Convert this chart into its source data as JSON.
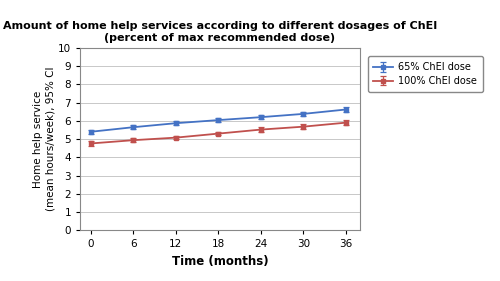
{
  "title_line1": "Amount of home help services according to different dosages of ChEI",
  "title_line2": "(percent of max recommended dose)",
  "xlabel": "Time (months)",
  "ylabel": "Home help service\n(mean hours/week), 95% CI",
  "x": [
    0,
    6,
    12,
    18,
    24,
    30,
    36
  ],
  "blue_y": [
    5.4,
    5.65,
    5.87,
    6.04,
    6.2,
    6.38,
    6.62
  ],
  "red_y": [
    4.76,
    4.94,
    5.08,
    5.3,
    5.52,
    5.68,
    5.9
  ],
  "blue_yerr": [
    0.12,
    0.1,
    0.1,
    0.1,
    0.12,
    0.12,
    0.14
  ],
  "red_yerr": [
    0.12,
    0.1,
    0.1,
    0.1,
    0.12,
    0.12,
    0.14
  ],
  "blue_color": "#4472C4",
  "red_color": "#C0504D",
  "ylim": [
    0,
    10
  ],
  "yticks": [
    0,
    1,
    2,
    3,
    4,
    5,
    6,
    7,
    8,
    9,
    10
  ],
  "xticks": [
    0,
    6,
    12,
    18,
    24,
    30,
    36
  ],
  "legend_labels": [
    "65% ChEI dose",
    "100% ChEI dose"
  ],
  "bg_color": "#FFFFFF",
  "grid_color": "#C8C8C8",
  "spine_color": "#888888",
  "title_fontsize": 8.0,
  "label_fontsize": 7.5,
  "tick_fontsize": 7.5,
  "legend_fontsize": 7.0
}
